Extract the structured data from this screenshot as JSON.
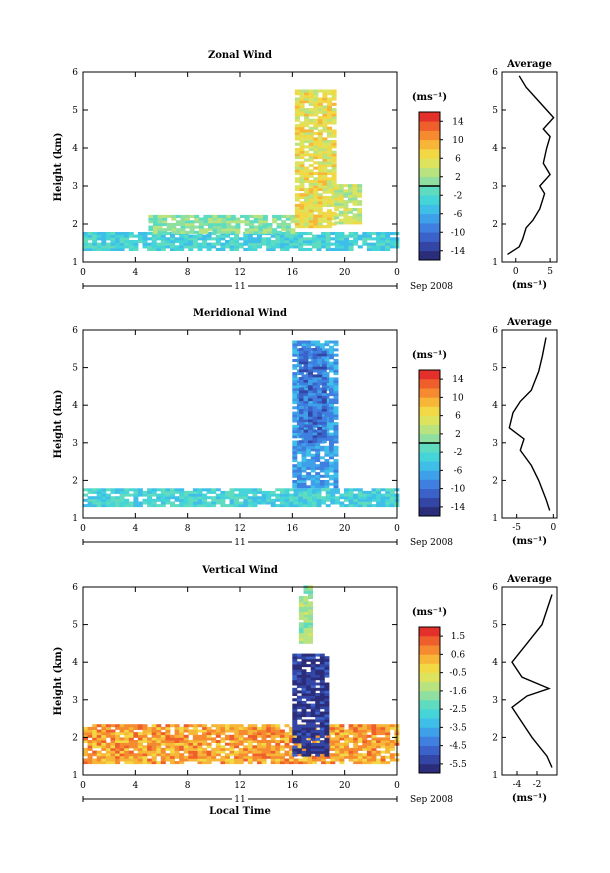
{
  "chart_data": [
    {
      "type": "heatmap",
      "title": "Zonal Wind",
      "ylabel": "Height (km)",
      "xlabel": "",
      "ylim": [
        1,
        6
      ],
      "yticks": [
        "1",
        "2",
        "3",
        "4",
        "5",
        "6"
      ],
      "xlim": [
        0,
        24
      ],
      "xticks": [
        "0",
        "4",
        "8",
        "12",
        "16",
        "20",
        "0"
      ],
      "date_axis": {
        "day": "11",
        "label": "Sep 2008"
      },
      "colorbar": {
        "unit": "(ms⁻¹)",
        "ticks": [
          "14",
          "10",
          "6",
          "2",
          "-2",
          "-6",
          "-10",
          "-14"
        ],
        "range": [
          -16,
          16
        ],
        "contour_level": 0
      },
      "regions": [
        {
          "t": [
            0,
            24
          ],
          "h": [
            1.3,
            1.75
          ],
          "value": -3
        },
        {
          "t": [
            5,
            16
          ],
          "h": [
            1.75,
            2.2
          ],
          "value": 1
        },
        {
          "t": [
            16.2,
            19.2
          ],
          "h": [
            1.9,
            5.5
          ],
          "value": 6
        },
        {
          "t": [
            19.2,
            21
          ],
          "h": [
            2,
            3
          ],
          "value": 4
        }
      ],
      "profile": {
        "title": "Average",
        "xlabel": "(ms⁻¹)",
        "xticks": [
          "0",
          "5"
        ],
        "xlim": [
          -2,
          6
        ],
        "points": [
          [
            -1.2,
            1.2
          ],
          [
            0.5,
            1.4
          ],
          [
            1,
            1.6
          ],
          [
            1.5,
            1.9
          ],
          [
            2.5,
            2.1
          ],
          [
            3.5,
            2.4
          ],
          [
            4.2,
            2.8
          ],
          [
            3.5,
            3.0
          ],
          [
            5,
            3.3
          ],
          [
            4,
            3.6
          ],
          [
            4.5,
            4.0
          ],
          [
            5,
            4.3
          ],
          [
            4,
            4.5
          ],
          [
            5.5,
            4.8
          ],
          [
            3.5,
            5.2
          ],
          [
            1.5,
            5.6
          ],
          [
            0.5,
            5.9
          ]
        ]
      }
    },
    {
      "type": "heatmap",
      "title": "Meridional Wind",
      "ylabel": "Height (km)",
      "xlabel": "",
      "ylim": [
        1,
        6
      ],
      "yticks": [
        "1",
        "2",
        "3",
        "4",
        "5",
        "6"
      ],
      "xlim": [
        0,
        24
      ],
      "xticks": [
        "0",
        "4",
        "8",
        "12",
        "16",
        "20",
        "0"
      ],
      "date_axis": {
        "day": "11",
        "label": "Sep 2008"
      },
      "colorbar": {
        "unit": "(ms⁻¹)",
        "ticks": [
          "14",
          "10",
          "6",
          "2",
          "-2",
          "-6",
          "-10",
          "-14"
        ],
        "range": [
          -16,
          16
        ],
        "contour_level": 0
      },
      "regions": [
        {
          "t": [
            0,
            24
          ],
          "h": [
            1.3,
            1.75
          ],
          "value": -3
        },
        {
          "t": [
            16,
            19.5
          ],
          "h": [
            1.8,
            5.7
          ],
          "value": -7
        },
        {
          "t": [
            16.5,
            18.5
          ],
          "h": [
            3,
            5.5
          ],
          "value": -10
        }
      ],
      "profile": {
        "title": "Average",
        "xlabel": "(ms⁻¹)",
        "xticks": [
          "-5",
          "0"
        ],
        "xlim": [
          -7,
          0.5
        ],
        "points": [
          [
            -0.5,
            1.2
          ],
          [
            -1,
            1.5
          ],
          [
            -2,
            2
          ],
          [
            -3,
            2.4
          ],
          [
            -4.5,
            2.8
          ],
          [
            -4,
            3.1
          ],
          [
            -6,
            3.4
          ],
          [
            -5.5,
            3.8
          ],
          [
            -4.5,
            4.1
          ],
          [
            -3,
            4.4
          ],
          [
            -2,
            4.9
          ],
          [
            -1.5,
            5.3
          ],
          [
            -1,
            5.8
          ]
        ]
      }
    },
    {
      "type": "heatmap",
      "title": "Vertical Wind",
      "ylabel": "Height (km)",
      "xlabel": "Local Time",
      "ylim": [
        1,
        6
      ],
      "yticks": [
        "1",
        "2",
        "3",
        "4",
        "5",
        "6"
      ],
      "xlim": [
        0,
        24
      ],
      "xticks": [
        "0",
        "4",
        "8",
        "12",
        "16",
        "20",
        "0"
      ],
      "date_axis": {
        "day": "11",
        "label": "Sep 2008"
      },
      "colorbar": {
        "unit": "(ms⁻¹)",
        "ticks": [
          "1.5",
          "0.6",
          "-0.5",
          "-1.6",
          "-2.5",
          "-3.5",
          "-4.5",
          "-5.5"
        ],
        "range": [
          -6,
          2
        ]
      },
      "regions": [
        {
          "t": [
            0,
            24
          ],
          "h": [
            1.3,
            2.3
          ],
          "value": 0.5
        },
        {
          "t": [
            16,
            18.5
          ],
          "h": [
            1.5,
            4.2
          ],
          "value": -5.5
        },
        {
          "t": [
            16.5,
            17.5
          ],
          "h": [
            4.5,
            6
          ],
          "value": -1.5
        }
      ],
      "profile": {
        "title": "Average",
        "xlabel": "(ms⁻¹)",
        "xticks": [
          "-4",
          "-2"
        ],
        "xlim": [
          -5.5,
          0
        ],
        "points": [
          [
            -0.5,
            1.2
          ],
          [
            -1,
            1.5
          ],
          [
            -2.5,
            2
          ],
          [
            -3.5,
            2.4
          ],
          [
            -4.5,
            2.8
          ],
          [
            -3,
            3.1
          ],
          [
            -0.8,
            3.3
          ],
          [
            -3.5,
            3.6
          ],
          [
            -4.5,
            4
          ],
          [
            -3,
            4.5
          ],
          [
            -1.5,
            5
          ],
          [
            -0.5,
            5.8
          ]
        ]
      }
    }
  ]
}
